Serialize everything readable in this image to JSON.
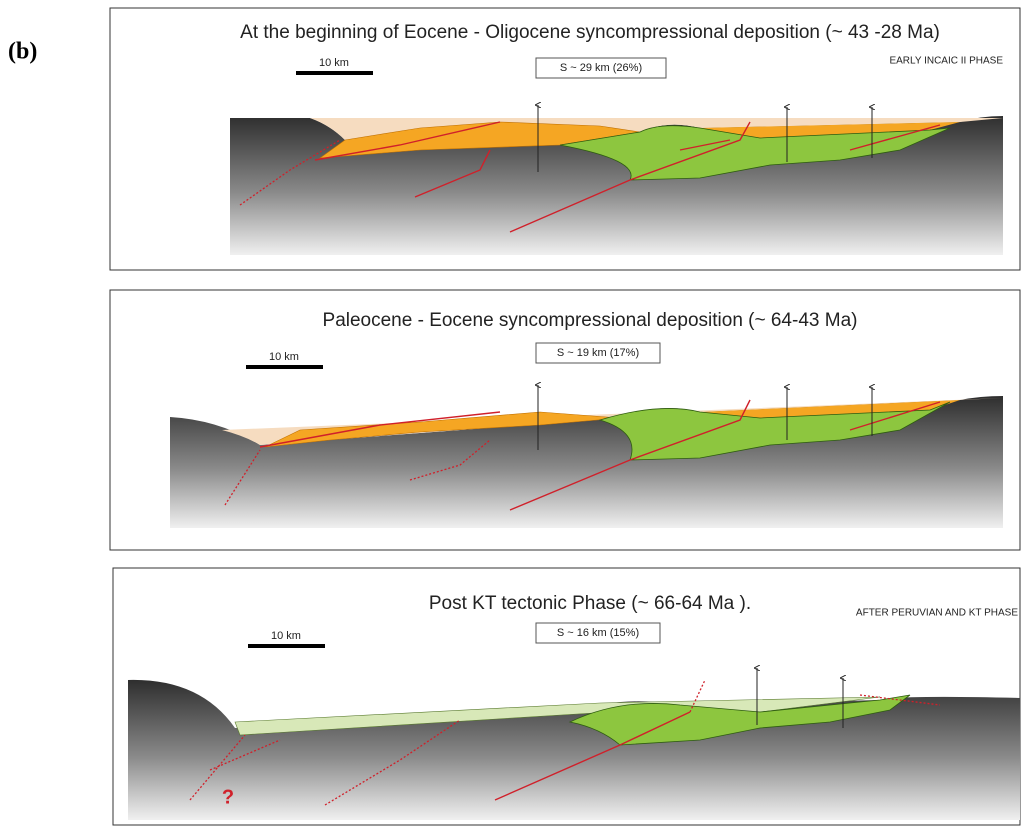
{
  "figure_label": "(b)",
  "panels": [
    {
      "title": "At the beginning of Eocene - Oligocene syncompressional deposition (~ 43 -28 Ma)",
      "scale_bar": "10 km",
      "shortening": "S ~ 29 km (26%)",
      "phase": "EARLY INCAIC II PHASE"
    },
    {
      "title": "Paleocene - Eocene syncompressional deposition (~ 64-43 Ma)",
      "scale_bar": "10 km",
      "shortening": "S ~ 19 km (17%)"
    },
    {
      "title": "Post KT tectonic Phase (~ 66-64 Ma ).",
      "scale_bar": "10 km",
      "shortening": "S ~ 16 km (15%)",
      "phase": "AFTER PERUVIAN AND KT PHASE"
    }
  ],
  "question_mark": "?"
}
